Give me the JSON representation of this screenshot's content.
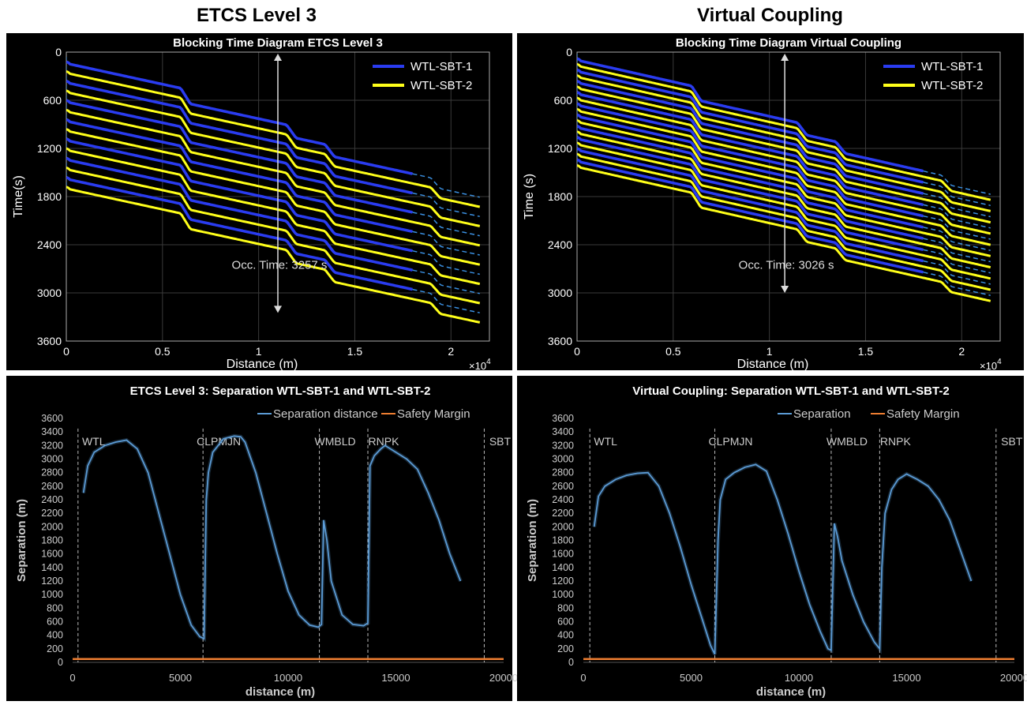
{
  "headings": {
    "left": "ETCS Level 3",
    "right": "Virtual Coupling"
  },
  "chart_data": [
    {
      "type": "line",
      "title": "Blocking Time Diagram ETCS Level 3",
      "xlabel": "Distance (m)",
      "ylabel": "Time(s)",
      "x_multiplier": "×10",
      "x_multiplier_exp": "4",
      "xlim": [
        0,
        2.2
      ],
      "ylim": [
        0,
        3600
      ],
      "y_inverted": true,
      "xticks": [
        "0",
        "0.5",
        "1",
        "1.5",
        "2"
      ],
      "yticks": [
        "0",
        "600",
        "1200",
        "1800",
        "2400",
        "3000",
        "3600"
      ],
      "grid": true,
      "legend": {
        "placement": "top-right",
        "entries": [
          "WTL-SBT-1",
          "WTL-SBT-2"
        ]
      },
      "colors": {
        "s1": "#2a3cf0",
        "s2": "#ffff1a",
        "dash": "#3a8fe0",
        "arrow": "#dddddd"
      },
      "annotation": "Occ. Time: 3257 s",
      "train_count": 14,
      "first_departure_s": 120,
      "headway_s": 120,
      "drift_s_per_unit": 520,
      "steps": [
        {
          "x": 0.62,
          "h": 170
        },
        {
          "x": 1.17,
          "h": 140
        },
        {
          "x": 1.37,
          "h": 130
        },
        {
          "x": 1.92,
          "h": 110
        }
      ],
      "end_x_solid": 1.8,
      "end_x": 2.15,
      "s2_solid_to_end": true,
      "arrow_x": 1.1,
      "arrow_y": [
        0,
        3250
      ]
    },
    {
      "type": "line",
      "title": "Blocking Time Diagram Virtual Coupling",
      "xlabel": "Distance (m)",
      "ylabel": "Time (s)",
      "x_multiplier": "×10",
      "x_multiplier_exp": "4",
      "xlim": [
        0,
        2.2
      ],
      "ylim": [
        0,
        3600
      ],
      "y_inverted": true,
      "xticks": [
        "0",
        "0.5",
        "1",
        "1.5",
        "2"
      ],
      "yticks": [
        "0",
        "600",
        "1200",
        "1800",
        "2400",
        "3000",
        "3600"
      ],
      "grid": true,
      "legend": {
        "placement": "top-right",
        "entries": [
          "WTL-SBT-1",
          "WTL-SBT-2"
        ]
      },
      "colors": {
        "s1": "#2a3cf0",
        "s2": "#ffff1a",
        "dash": "#3a8fe0",
        "arrow": "#dddddd"
      },
      "annotation": "Occ. Time: 3026 s",
      "train_count": 20,
      "first_departure_s": 80,
      "headway_s": 70,
      "drift_s_per_unit": 540,
      "steps": [
        {
          "x": 0.62,
          "h": 160
        },
        {
          "x": 1.17,
          "h": 130
        },
        {
          "x": 1.37,
          "h": 120
        },
        {
          "x": 1.92,
          "h": 100
        }
      ],
      "end_x_solid": 1.8,
      "end_x": 2.15,
      "s2_solid_to_end": true,
      "arrow_x": 1.08,
      "arrow_y": [
        0,
        3000
      ]
    },
    {
      "type": "line",
      "title": "ETCS Level 3: Separation WTL-SBT-1 and WTL-SBT-2",
      "xlabel": "distance (m)",
      "ylabel": "Separation (m)",
      "xlim": [
        0,
        20000
      ],
      "ylim": [
        0,
        3600
      ],
      "xticks": [
        0,
        5000,
        10000,
        15000,
        20000
      ],
      "yticks": [
        0,
        200,
        400,
        600,
        800,
        1000,
        1200,
        1400,
        1600,
        1800,
        2000,
        2200,
        2400,
        2600,
        2800,
        3000,
        3200,
        3400,
        3600
      ],
      "legend": {
        "placement": "top-right",
        "entries": [
          "Separation distance",
          "Safety Margin"
        ]
      },
      "colors": {
        "separation": "#5b9bd5",
        "margin": "#ed7d31"
      },
      "stations": [
        {
          "name": "WTL",
          "x": 250
        },
        {
          "name": "CLPMJN",
          "x": 6050
        },
        {
          "name": "WMBLD",
          "x": 11450
        },
        {
          "name": "RNPK",
          "x": 13700
        },
        {
          "name": "SBT",
          "x": 19100
        }
      ],
      "safety_margin": 50,
      "separation": {
        "x": [
          500,
          700,
          1000,
          1500,
          2000,
          2500,
          3000,
          3500,
          4000,
          4500,
          5000,
          5500,
          5900,
          6100,
          6200,
          6300,
          6500,
          7000,
          7500,
          7800,
          8000,
          8500,
          9000,
          9500,
          10000,
          10500,
          11000,
          11400,
          11550,
          11650,
          11800,
          12000,
          12500,
          13000,
          13500,
          13700,
          13800,
          14000,
          14300,
          14500,
          15000,
          15500,
          16000,
          16500,
          17000,
          17500,
          18000
        ],
        "y": [
          2500,
          2900,
          3100,
          3200,
          3250,
          3280,
          3150,
          2800,
          2200,
          1600,
          1000,
          550,
          380,
          350,
          2400,
          2800,
          3100,
          3300,
          3340,
          3330,
          3250,
          2800,
          2200,
          1600,
          1050,
          700,
          550,
          520,
          560,
          2100,
          1800,
          1200,
          700,
          560,
          540,
          580,
          2900,
          3050,
          3150,
          3200,
          3100,
          3000,
          2850,
          2500,
          2100,
          1600,
          1200
        ]
      }
    },
    {
      "type": "line",
      "title": "Virtual Coupling: Separation WTL-SBT-1 and WTL-SBT-2",
      "xlabel": "distance (m)",
      "ylabel": "Separation (m)",
      "xlim": [
        0,
        20000
      ],
      "ylim": [
        0,
        3600
      ],
      "xticks": [
        0,
        5000,
        10000,
        15000,
        20000
      ],
      "yticks": [
        0,
        200,
        400,
        600,
        800,
        1000,
        1200,
        1400,
        1600,
        1800,
        2000,
        2200,
        2400,
        2600,
        2800,
        3000,
        3200,
        3400,
        3600
      ],
      "legend": {
        "placement": "top-right",
        "entries": [
          "Separation",
          "Safety Margin"
        ]
      },
      "colors": {
        "separation": "#5b9bd5",
        "margin": "#ed7d31"
      },
      "stations": [
        {
          "name": "WTL",
          "x": 300
        },
        {
          "name": "CLPMJN",
          "x": 6100
        },
        {
          "name": "WMBLD",
          "x": 11500
        },
        {
          "name": "RNPK",
          "x": 13750
        },
        {
          "name": "SBT",
          "x": 19150
        }
      ],
      "safety_margin": 50,
      "separation": {
        "x": [
          500,
          700,
          1000,
          1500,
          2000,
          2500,
          3000,
          3500,
          4000,
          4500,
          5000,
          5500,
          5900,
          6100,
          6250,
          6350,
          6600,
          7000,
          7500,
          8000,
          8500,
          9000,
          9500,
          10000,
          10500,
          11000,
          11350,
          11500,
          11650,
          11800,
          12000,
          12500,
          13000,
          13500,
          13750,
          13850,
          14000,
          14300,
          14600,
          15000,
          15500,
          16000,
          16500,
          17000,
          17500,
          18000
        ],
        "y": [
          2000,
          2450,
          2600,
          2700,
          2760,
          2790,
          2800,
          2600,
          2200,
          1700,
          1150,
          650,
          250,
          120,
          1800,
          2400,
          2700,
          2800,
          2880,
          2920,
          2820,
          2400,
          1900,
          1350,
          850,
          450,
          200,
          180,
          2050,
          1850,
          1500,
          1000,
          600,
          300,
          200,
          1400,
          2200,
          2550,
          2700,
          2780,
          2700,
          2600,
          2400,
          2100,
          1650,
          1200
        ]
      }
    }
  ]
}
